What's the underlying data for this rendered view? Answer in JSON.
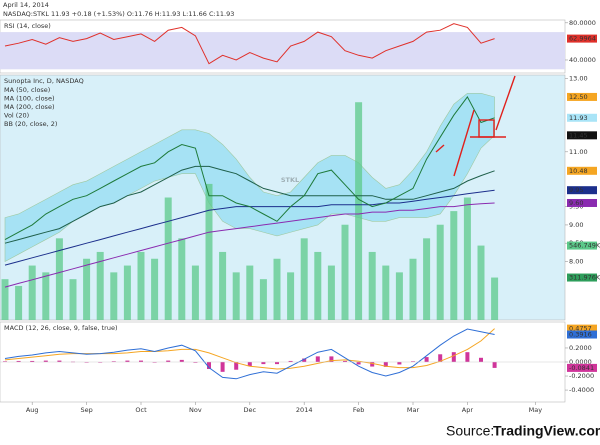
{
  "header": {
    "date": "April 14, 2014",
    "quote": "NASDAQ:STKL 11.93 +0.18 (+1.53%) O:11.76 H:11.93 L:11.66 C:11.93"
  },
  "source": {
    "label": "Source:",
    "name": "TradingView.com"
  },
  "chart_data": [
    {
      "type": "line",
      "title": "RSI (14, close)",
      "ylim": [
        26,
        83
      ],
      "band": [
        30,
        70
      ],
      "band_color": "#dcdcf6",
      "yticks": [
        {
          "value": 80,
          "label": "80.0000"
        },
        {
          "value": 40,
          "label": "40.0000"
        }
      ],
      "tags": [
        {
          "value": 62.9964,
          "label": "62.9964",
          "color": "#e0302a"
        }
      ],
      "series": [
        {
          "color": "#e0302a",
          "values": [
            55,
            58,
            62,
            57,
            64,
            60,
            63,
            69,
            62,
            65,
            68,
            60,
            72,
            75,
            66,
            36,
            45,
            40,
            48,
            42,
            38,
            55,
            60,
            70,
            65,
            50,
            45,
            42,
            50,
            55,
            60,
            70,
            72,
            79,
            75,
            58,
            62.9964,
            null,
            null,
            null,
            null
          ]
        }
      ]
    },
    {
      "type": "line",
      "title": "Sunopta Inc, D, NASDAQ",
      "watermark": [
        "STKL",
        "Sunopta Inc"
      ],
      "background": "#d8f0f9",
      "ylim": [
        6.4,
        13.1
      ],
      "yticks": [
        {
          "value": 13,
          "label": "13.00"
        },
        {
          "value": 11,
          "label": "11.00"
        },
        {
          "value": 9.5,
          "label": "9.50"
        },
        {
          "value": 9,
          "label": "9.00"
        },
        {
          "value": 8.5,
          "label": "8.50"
        },
        {
          "value": 8,
          "label": "8.00"
        }
      ],
      "tags": [
        {
          "value": 12.5,
          "label": "12.50",
          "color": "#f5a623"
        },
        {
          "value": 11.93,
          "label": "11.93",
          "color": "#a9e4f7"
        },
        {
          "value": 11.45,
          "label": "11.45",
          "color": "#111111"
        },
        {
          "value": 10.48,
          "label": "10.48",
          "color": "#f5a623"
        },
        {
          "value": 9.95,
          "label": "9.95",
          "color": "#1c2f8c"
        },
        {
          "value": 9.6,
          "label": "9.60",
          "color": "#8a2bb0"
        }
      ],
      "y2lim": [
        0,
        1800000
      ],
      "y2ticks": [
        {
          "value": 546749,
          "label": "546.749K"
        },
        {
          "value": 311976,
          "label": "311.976K"
        }
      ],
      "series": [
        {
          "type": "band",
          "name": "BB (20, close, 2)",
          "color": "#a6e2f4",
          "upper": [
            9.2,
            9.3,
            9.5,
            9.7,
            9.9,
            10.1,
            10.2,
            10.4,
            10.6,
            10.8,
            11.0,
            11.2,
            11.4,
            11.6,
            11.6,
            11.5,
            11.2,
            10.8,
            10.3,
            9.9,
            9.8,
            9.9,
            10.3,
            10.7,
            10.9,
            10.9,
            10.7,
            10.3,
            10.0,
            10.1,
            10.5,
            11.0,
            11.7,
            12.3,
            12.6,
            12.6,
            12.5,
            null,
            null,
            null,
            null
          ],
          "lower": [
            8.0,
            8.2,
            8.4,
            8.6,
            8.8,
            9.1,
            9.3,
            9.5,
            9.6,
            9.8,
            10.0,
            10.2,
            10.3,
            10.4,
            10.4,
            9.6,
            9.1,
            8.9,
            8.9,
            8.8,
            8.7,
            8.8,
            8.9,
            9.0,
            9.3,
            9.3,
            9.2,
            9.1,
            9.1,
            9.2,
            9.2,
            9.2,
            9.3,
            9.8,
            10.4,
            11.1,
            11.45,
            null,
            null,
            null,
            null
          ]
        },
        {
          "type": "bar",
          "axis": "y2",
          "name": "Vol (20)",
          "color": "#5cc98a",
          "values": [
            300000,
            250000,
            400000,
            350000,
            600000,
            300000,
            450000,
            500000,
            350000,
            400000,
            500000,
            450000,
            900000,
            600000,
            400000,
            1000000,
            500000,
            350000,
            400000,
            300000,
            450000,
            350000,
            600000,
            500000,
            400000,
            700000,
            1600000,
            500000,
            400000,
            350000,
            450000,
            600000,
            700000,
            800000,
            900000,
            546749,
            311976,
            null,
            null,
            null,
            null
          ]
        },
        {
          "type": "line",
          "name": "MA (200, close)",
          "color": "#8a2bb0",
          "values": [
            7.3,
            7.4,
            7.5,
            7.6,
            7.7,
            7.8,
            7.9,
            8.0,
            8.1,
            8.2,
            8.3,
            8.4,
            8.5,
            8.6,
            8.7,
            8.8,
            8.85,
            8.9,
            8.95,
            9.0,
            9.05,
            9.1,
            9.15,
            9.2,
            9.25,
            9.3,
            9.3,
            9.35,
            9.35,
            9.4,
            9.4,
            9.45,
            9.5,
            9.5,
            9.55,
            9.58,
            9.6,
            null,
            null,
            null,
            null
          ]
        },
        {
          "type": "line",
          "name": "MA (100, close)",
          "color": "#1c2f8c",
          "values": [
            7.9,
            8.0,
            8.1,
            8.2,
            8.3,
            8.4,
            8.5,
            8.6,
            8.7,
            8.8,
            8.9,
            9.0,
            9.1,
            9.2,
            9.3,
            9.4,
            9.45,
            9.5,
            9.5,
            9.5,
            9.5,
            9.5,
            9.5,
            9.5,
            9.55,
            9.55,
            9.55,
            9.55,
            9.6,
            9.6,
            9.65,
            9.7,
            9.75,
            9.8,
            9.85,
            9.9,
            9.95,
            null,
            null,
            null,
            null
          ]
        },
        {
          "type": "line",
          "name": "MA (50, close)",
          "color": "#1f5f4a",
          "values": [
            8.5,
            8.6,
            8.7,
            8.8,
            8.9,
            9.1,
            9.3,
            9.5,
            9.6,
            9.8,
            9.9,
            10.1,
            10.3,
            10.5,
            10.6,
            10.6,
            10.5,
            10.4,
            10.2,
            10.0,
            9.9,
            9.8,
            9.8,
            9.8,
            9.8,
            9.8,
            9.8,
            9.8,
            9.7,
            9.7,
            9.7,
            9.8,
            9.9,
            10.0,
            10.2,
            10.35,
            10.48,
            null,
            null,
            null,
            null
          ]
        },
        {
          "type": "line",
          "color": "#1e7a3a",
          "values": [
            8.6,
            8.8,
            9.0,
            9.3,
            9.5,
            9.7,
            9.8,
            10.0,
            10.2,
            10.4,
            10.6,
            10.7,
            11.0,
            11.2,
            11.1,
            9.8,
            9.8,
            9.6,
            9.5,
            9.3,
            9.1,
            9.5,
            9.8,
            10.4,
            10.5,
            10.1,
            9.7,
            9.5,
            9.6,
            9.8,
            10.0,
            10.8,
            11.4,
            12.0,
            12.5,
            11.8,
            11.93,
            null,
            null,
            null,
            null
          ]
        }
      ]
    },
    {
      "type": "line",
      "title": "MACD (12, 26, close, 9, false, true)",
      "ylim": [
        -0.57,
        0.57
      ],
      "yticks": [
        {
          "value": 0.2,
          "label": "0.2000"
        },
        {
          "value": 0,
          "label": "0.0000"
        },
        {
          "value": -0.2,
          "label": "-0.2000"
        },
        {
          "value": -0.4,
          "label": "-0.4000"
        }
      ],
      "tags": [
        {
          "value": 0.4757,
          "label": "0.4757",
          "color": "#f5a623"
        },
        {
          "value": 0.3916,
          "label": "0.3916",
          "color": "#2f6fd6"
        },
        {
          "value": -0.0841,
          "label": "-0.0841",
          "color": "#d0359a"
        }
      ],
      "categories": [
        null,
        null,
        "Aug",
        null,
        null,
        null,
        "Sep",
        null,
        null,
        null,
        "Oct",
        null,
        null,
        null,
        "Nov",
        null,
        null,
        null,
        "Dec",
        null,
        null,
        null,
        "2014",
        null,
        null,
        null,
        "Feb",
        null,
        null,
        null,
        "Mar",
        null,
        null,
        null,
        "Apr",
        null,
        null,
        null,
        null,
        "May",
        null
      ],
      "series": [
        {
          "type": "bar",
          "color": "#d0359a",
          "values": [
            0.01,
            0.015,
            0.015,
            0.02,
            0.02,
            0.005,
            -0.005,
            0,
            0.01,
            0.02,
            0.02,
            0,
            0.02,
            0.03,
            -0.01,
            -0.1,
            -0.14,
            -0.11,
            -0.06,
            -0.03,
            -0.03,
            0.015,
            0.05,
            0.08,
            0.08,
            0.015,
            -0.035,
            -0.065,
            -0.07,
            -0.035,
            0.01,
            0.07,
            0.11,
            0.14,
            0.14,
            0.06,
            -0.0841,
            null,
            null,
            null,
            null
          ]
        },
        {
          "type": "line",
          "color": "#f5a623",
          "values": [
            0.03,
            0.05,
            0.07,
            0.09,
            0.11,
            0.12,
            0.12,
            0.12,
            0.12,
            0.13,
            0.15,
            0.15,
            0.16,
            0.18,
            0.18,
            0.13,
            0.06,
            -0.01,
            -0.06,
            -0.08,
            -0.1,
            -0.09,
            -0.06,
            -0.02,
            0.02,
            0.03,
            0.01,
            -0.02,
            -0.06,
            -0.08,
            -0.08,
            -0.05,
            0.01,
            0.09,
            0.18,
            0.3,
            0.4757,
            null,
            null,
            null,
            null
          ]
        },
        {
          "type": "line",
          "color": "#2f6fd6",
          "values": [
            0.05,
            0.08,
            0.1,
            0.13,
            0.15,
            0.13,
            0.11,
            0.12,
            0.14,
            0.17,
            0.19,
            0.15,
            0.2,
            0.24,
            0.16,
            -0.08,
            -0.22,
            -0.24,
            -0.18,
            -0.14,
            -0.16,
            -0.06,
            0.04,
            0.14,
            0.18,
            0.06,
            -0.06,
            -0.15,
            -0.2,
            -0.15,
            -0.06,
            0.09,
            0.24,
            0.37,
            0.47,
            0.43,
            0.3916,
            null,
            null,
            null,
            null
          ]
        }
      ]
    }
  ]
}
